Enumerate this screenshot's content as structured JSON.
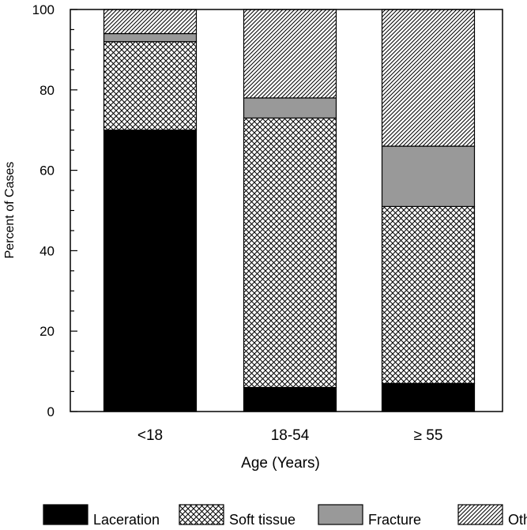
{
  "chart_data": {
    "type": "bar",
    "stacked": true,
    "title": "",
    "xlabel": "Age (Years)",
    "ylabel": "Percent of Cases",
    "ylim": [
      0,
      100
    ],
    "yticks": [
      0,
      20,
      40,
      60,
      80,
      100
    ],
    "categories": [
      "<18",
      "18-54",
      "≥ 55"
    ],
    "series": [
      {
        "name": "Laceration",
        "values": [
          70,
          6,
          7
        ],
        "fill": "solid-black",
        "color": "#000000"
      },
      {
        "name": "Soft tissue",
        "values": [
          22,
          67,
          44
        ],
        "fill": "crosshatch",
        "color": "#000000"
      },
      {
        "name": "Fracture",
        "values": [
          2,
          5,
          15
        ],
        "fill": "solid-gray",
        "color": "#999999"
      },
      {
        "name": "Other",
        "values": [
          6,
          22,
          34
        ],
        "fill": "diagonal-hatch",
        "color": "#000000"
      }
    ],
    "grid": false,
    "legend_position": "bottom"
  }
}
